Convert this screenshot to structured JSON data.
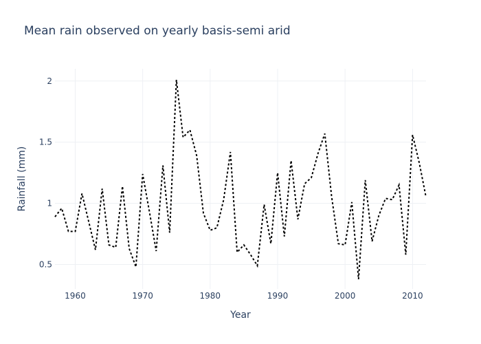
{
  "chart_data": {
    "type": "line",
    "title": "Mean rain observed on yearly basis-semi arid",
    "xlabel": "Year",
    "ylabel": "Rainfall (mm)",
    "xlim": [
      1957,
      2012
    ],
    "ylim": [
      0.3,
      2.1
    ],
    "x_ticks": [
      1960,
      1970,
      1980,
      1990,
      2000,
      2010
    ],
    "y_ticks": [
      0.5,
      1,
      1.5,
      2
    ],
    "grid": true,
    "legend": "none",
    "line_color": "#000000",
    "line_style": "dotted",
    "x": [
      1957,
      1958,
      1959,
      1960,
      1961,
      1962,
      1963,
      1964,
      1965,
      1966,
      1967,
      1968,
      1969,
      1970,
      1971,
      1972,
      1973,
      1974,
      1975,
      1976,
      1977,
      1978,
      1979,
      1980,
      1981,
      1982,
      1983,
      1984,
      1985,
      1986,
      1987,
      1988,
      1989,
      1990,
      1991,
      1992,
      1993,
      1994,
      1995,
      1996,
      1997,
      1998,
      1999,
      2000,
      2001,
      2002,
      2003,
      2004,
      2005,
      2006,
      2007,
      2008,
      2009,
      2010,
      2011,
      2012
    ],
    "y": [
      0.89,
      0.96,
      0.77,
      0.77,
      1.08,
      0.85,
      0.62,
      1.12,
      0.66,
      0.64,
      1.14,
      0.63,
      0.48,
      1.24,
      0.93,
      0.61,
      1.31,
      0.76,
      2.01,
      1.54,
      1.6,
      1.39,
      0.92,
      0.78,
      0.8,
      1.03,
      1.42,
      0.6,
      0.66,
      0.58,
      0.49,
      0.99,
      0.67,
      1.25,
      0.73,
      1.35,
      0.87,
      1.16,
      1.21,
      1.41,
      1.57,
      1.06,
      0.67,
      0.66,
      1.01,
      0.38,
      1.19,
      0.69,
      0.9,
      1.04,
      1.03,
      1.15,
      0.58,
      1.56,
      1.33,
      1.05
    ]
  }
}
